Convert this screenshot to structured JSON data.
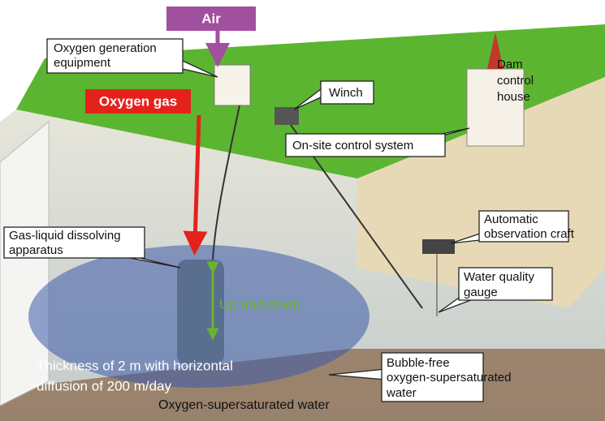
{
  "labels": {
    "air": "Air",
    "oxygen_gas": "Oxygen gas",
    "oxygen_generation": [
      "Oxygen generation",
      "equipment"
    ],
    "winch": "Winch",
    "dam_control_house": [
      "Dam",
      "control",
      "house"
    ],
    "onsite_control": "On-site control system",
    "gas_liquid": [
      "Gas-liquid dissolving",
      "apparatus"
    ],
    "up_down": "Up and down",
    "observation_craft": [
      "Automatic",
      "observation craft"
    ],
    "water_gauge": [
      "Water quality",
      "gauge"
    ],
    "thickness": [
      "Thickness of 2 m with horizontal",
      "diffusion of 200 m/day"
    ],
    "bubble_free": [
      "Bubble-free",
      "oxygen-supersaturated",
      "water"
    ],
    "supersaturated": "Oxygen-supersaturated water"
  }
}
